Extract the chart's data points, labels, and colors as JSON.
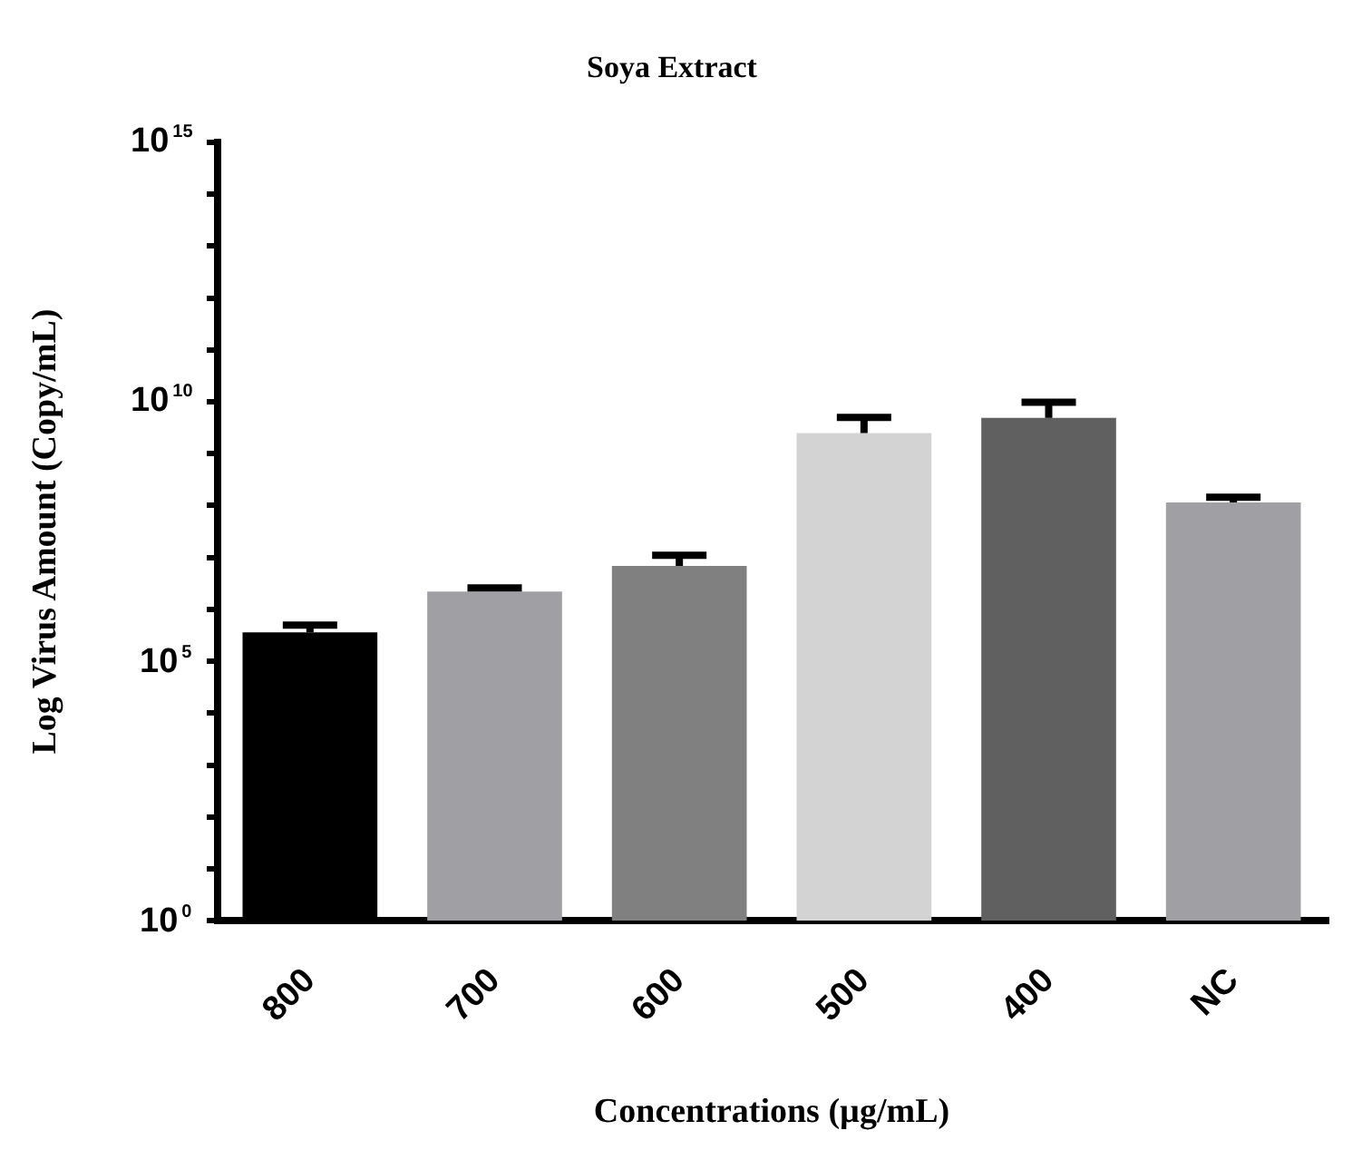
{
  "chart_data": {
    "type": "bar",
    "title": "Soya Extract",
    "xlabel": "Concentrations (µg/mL)",
    "ylabel": "Log Virus Amount (Copy/mL)",
    "categories": [
      "800",
      "700",
      "600",
      "500",
      "400",
      "NC"
    ],
    "values": [
      360000,
      2200000,
      6900000,
      2500000000,
      4900000000,
      115000000
    ],
    "errors": [
      [
        360000,
        500000
      ],
      [
        2200000,
        2600000
      ],
      [
        6900000,
        11000000
      ],
      [
        2500000000,
        5000000000
      ],
      [
        4900000000,
        9800000000
      ],
      [
        115000000,
        145000000
      ]
    ],
    "colors": [
      "#000000",
      "#a09fa4",
      "#808080",
      "#d3d3d3",
      "#606060",
      "#a09fa4"
    ],
    "log": "y",
    "ylim": [
      1,
      1000000000000000
    ],
    "yticks": [
      {
        "value": 1,
        "label": "10$^{0}$"
      },
      {
        "value": 10,
        "label": null
      },
      {
        "value": 100,
        "label": null
      },
      {
        "value": 1000,
        "label": null
      },
      {
        "value": 10000,
        "label": null
      },
      {
        "value": 100000,
        "label": "10$^{5}$"
      },
      {
        "value": 1000000,
        "label": null
      },
      {
        "value": 10000000,
        "label": null
      },
      {
        "value": 100000000,
        "label": null
      },
      {
        "value": 1000000000,
        "label": null
      },
      {
        "value": 10000000000,
        "label": "10$^{10}$"
      },
      {
        "value": 100000000000,
        "label": null
      },
      {
        "value": 1000000000000,
        "label": null
      },
      {
        "value": 10000000000000,
        "label": null
      },
      {
        "value": 100000000000000,
        "label": null
      },
      {
        "value": 1000000000000000,
        "label": "10$^{15}$"
      }
    ],
    "grid": false,
    "legend": false
  }
}
